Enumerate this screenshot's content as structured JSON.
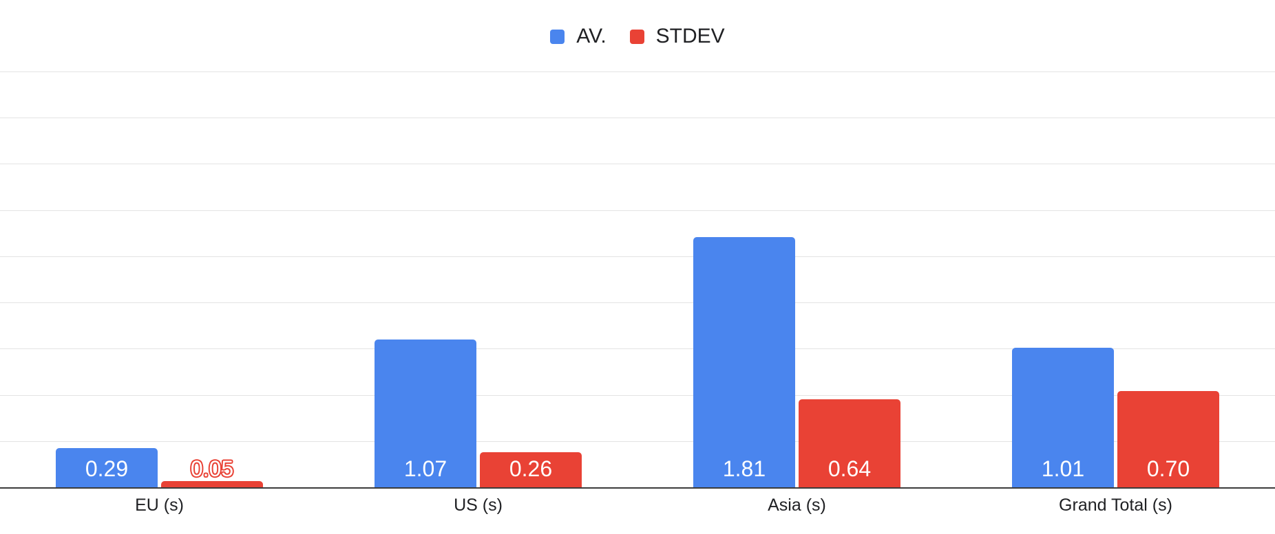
{
  "chart_data": {
    "type": "bar",
    "title": "",
    "categories": [
      "EU (s)",
      "US (s)",
      "Asia (s)",
      "Grand Total (s)"
    ],
    "series": [
      {
        "name": "AV.",
        "color": "#4a85ee",
        "values": [
          0.29,
          1.07,
          1.81,
          1.01
        ]
      },
      {
        "name": "STDEV",
        "color": "#e94235",
        "values": [
          0.05,
          0.26,
          0.64,
          0.7
        ]
      }
    ],
    "data_labels": {
      "AV.": [
        "0.29",
        "1.07",
        "1.81",
        "1.01"
      ],
      "STDEV": [
        "0.05",
        "0.26",
        "0.64",
        "0.70"
      ]
    },
    "ylim": [
      0,
      3
    ],
    "gridline_intervals": 9,
    "grid": true,
    "legend_position": "top",
    "y_tick_labels_shown": false
  },
  "styles": {
    "background": "#ffffff",
    "gridline_color": "#e3e3e3",
    "axis_line_color": "#3b3b3b",
    "legend_text_color": "#202124",
    "category_text_color": "#202124",
    "data_label_color_inside": "#ffffff"
  }
}
